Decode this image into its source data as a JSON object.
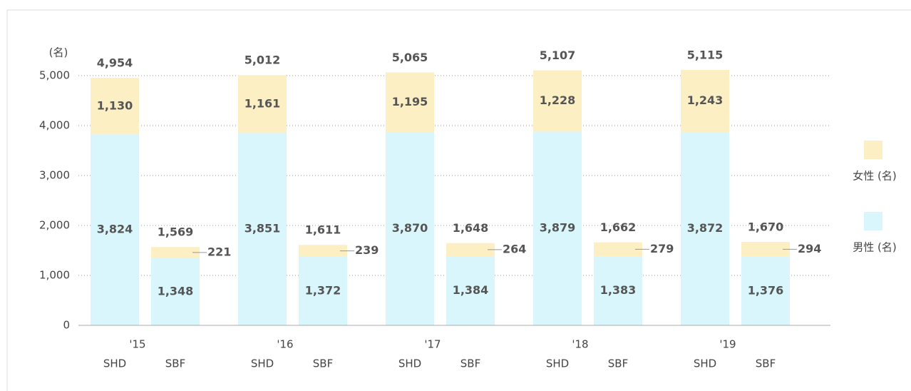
{
  "chart_data": {
    "type": "stacked-bar",
    "unit_label": "(名)",
    "categories": [
      "SHD",
      "SBF",
      "SHD",
      "SBF",
      "SHD",
      "SBF",
      "SHD",
      "SBF",
      "SHD",
      "SBF"
    ],
    "groups": [
      "'15",
      "'16",
      "'17",
      "'18",
      "'19"
    ],
    "series": [
      {
        "name": "男性 (名)",
        "color": "#d8f6fb",
        "values": [
          3824,
          1348,
          3851,
          1372,
          3870,
          1384,
          3879,
          1383,
          3872,
          1376
        ],
        "value_labels": [
          "3,824",
          "1,348",
          "3,851",
          "1,372",
          "3,870",
          "1,384",
          "3,879",
          "1,383",
          "3,872",
          "1,376"
        ]
      },
      {
        "name": "女性 (名)",
        "color": "#fcefc4",
        "values": [
          1130,
          221,
          1161,
          239,
          1195,
          264,
          1228,
          279,
          1243,
          294
        ],
        "value_labels": [
          "1,130",
          "221",
          "1,161",
          "239",
          "1,195",
          "264",
          "1,228",
          "279",
          "1,243",
          "294"
        ]
      }
    ],
    "totals": [
      4954,
      1569,
      5012,
      1611,
      5065,
      1648,
      5107,
      1662,
      5115,
      1670
    ],
    "total_labels": [
      "4,954",
      "1,569",
      "5,012",
      "1,611",
      "5,065",
      "1,648",
      "5,107",
      "1,662",
      "5,115",
      "1,670"
    ],
    "ylim": [
      0,
      5500
    ],
    "yticks": [
      0,
      {
        "value": 1000,
        "label": "1,000"
      },
      {
        "value": 2000,
        "label": "2,000"
      },
      {
        "value": 3000,
        "label": "3,000"
      },
      {
        "value": 4000,
        "label": "4,000"
      },
      {
        "value": 5000,
        "label": "5,000"
      }
    ],
    "grid": true
  }
}
